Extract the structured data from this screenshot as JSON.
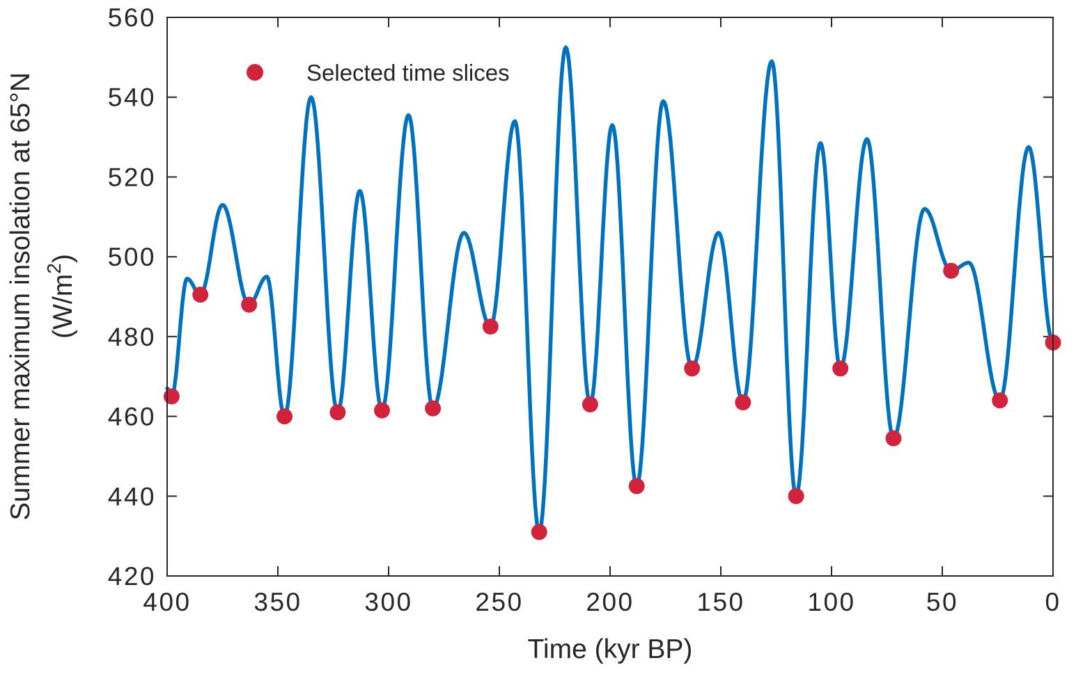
{
  "chart_data": {
    "type": "line",
    "title": "",
    "xlabel": "Time (kyr BP)",
    "ylabel": "Summer maximum insolation at 65°N",
    "ylabel_units": {
      "pre": "(W/m",
      "sup": "2",
      "post": ")"
    },
    "x_axis": {
      "min": 0,
      "max": 400,
      "reversed": true,
      "ticks": [
        400,
        350,
        300,
        250,
        200,
        150,
        100,
        50,
        0
      ]
    },
    "y_axis": {
      "min": 420,
      "max": 560,
      "ticks": [
        420,
        440,
        460,
        480,
        500,
        520,
        540,
        560
      ]
    },
    "grid": false,
    "legend": {
      "label": "Selected time slices",
      "position": "top-left-inside"
    },
    "colors": {
      "line": "#0072BD",
      "marker": "#D2233C",
      "axis": "#262626",
      "background": "#FFFFFF"
    },
    "series": [
      {
        "name": "Summer maximum insolation at 65°N",
        "style": "smooth-line",
        "extrema_points": [
          [
            400,
            467
          ],
          [
            398,
            465
          ],
          [
            391,
            494.5
          ],
          [
            385,
            490.5
          ],
          [
            375,
            513
          ],
          [
            363,
            488
          ],
          [
            355,
            495
          ],
          [
            347,
            460
          ],
          [
            335,
            540
          ],
          [
            323,
            461
          ],
          [
            313,
            516.5
          ],
          [
            303,
            461.5
          ],
          [
            291,
            535.5
          ],
          [
            280,
            462
          ],
          [
            266,
            506
          ],
          [
            254,
            482.5
          ],
          [
            243,
            534
          ],
          [
            232,
            431
          ],
          [
            220,
            552.5
          ],
          [
            209,
            463
          ],
          [
            199,
            533
          ],
          [
            188,
            442.5
          ],
          [
            176,
            539
          ],
          [
            163,
            472
          ],
          [
            151,
            506
          ],
          [
            140,
            463.5
          ],
          [
            127,
            549
          ],
          [
            116,
            440
          ],
          [
            105,
            528.5
          ],
          [
            96,
            472
          ],
          [
            84,
            529.5
          ],
          [
            72,
            454.5
          ],
          [
            58,
            512
          ],
          [
            46,
            496.5
          ],
          [
            38,
            498.5
          ],
          [
            24,
            464
          ],
          [
            11,
            527.5
          ],
          [
            0,
            478.5
          ]
        ]
      },
      {
        "name": "Selected time slices",
        "style": "scatter",
        "points": [
          [
            398,
            465
          ],
          [
            385,
            490.5
          ],
          [
            363,
            488
          ],
          [
            347,
            460
          ],
          [
            323,
            461
          ],
          [
            303,
            461.5
          ],
          [
            280,
            462
          ],
          [
            254,
            482.5
          ],
          [
            232,
            431
          ],
          [
            209,
            463
          ],
          [
            188,
            442.5
          ],
          [
            163,
            472
          ],
          [
            140,
            463.5
          ],
          [
            116,
            440
          ],
          [
            96,
            472
          ],
          [
            72,
            454.5
          ],
          [
            46,
            496.5
          ],
          [
            24,
            464
          ],
          [
            0,
            478.5
          ]
        ]
      }
    ]
  }
}
